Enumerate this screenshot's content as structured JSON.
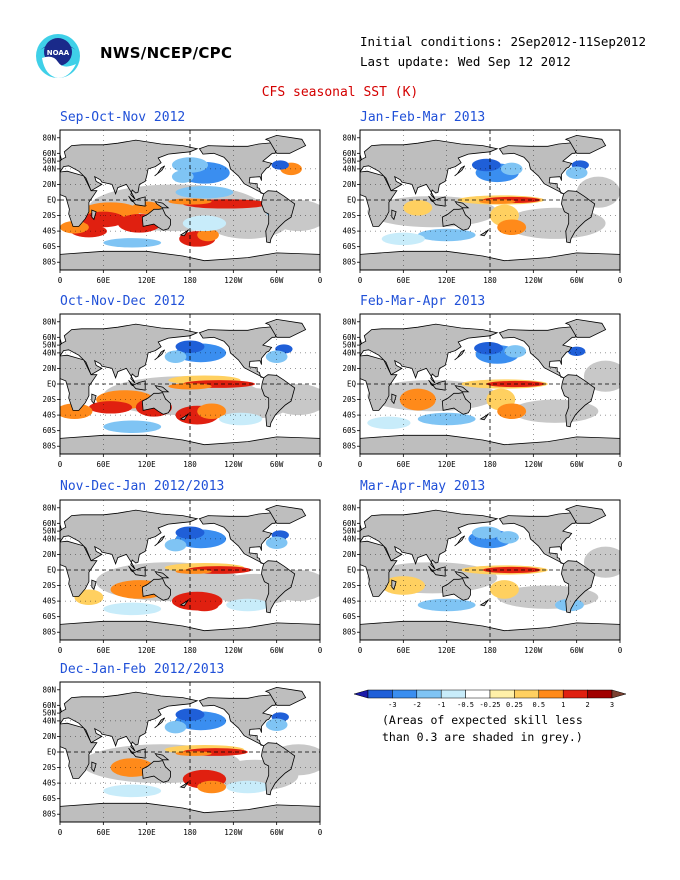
{
  "header": {
    "agency": "NWS/NCEP/CPC",
    "initial_conditions": "Initial conditions: 2Sep2012-11Sep2012",
    "last_update": "Last update: Wed Sep 12 2012",
    "title": "CFS seasonal SST (K)",
    "logo_text": "NOAA"
  },
  "panels": [
    {
      "title": "Sep-Oct-Nov 2012"
    },
    {
      "title": "Jan-Feb-Mar 2013"
    },
    {
      "title": "Oct-Nov-Dec 2012"
    },
    {
      "title": "Feb-Mar-Apr 2013"
    },
    {
      "title": "Nov-Dec-Jan 2012/2013"
    },
    {
      "title": "Mar-Apr-May 2013"
    },
    {
      "title": "Dec-Jan-Feb 2012/2013"
    }
  ],
  "axes": {
    "lat_labels": [
      "80N",
      "60N",
      "50N",
      "40N",
      "20N",
      "EQ",
      "20S",
      "40S",
      "60S",
      "80S"
    ],
    "lon_labels": [
      "0",
      "60E",
      "120E",
      "180",
      "120W",
      "60W",
      "0"
    ]
  },
  "legend": {
    "labels": [
      "-3",
      "-2",
      "-1",
      "-0.5",
      "-0.25",
      "0.25",
      "0.5",
      "1",
      "2",
      "3"
    ],
    "colors": [
      "#1a1aa8",
      "#1f5fd8",
      "#3a8ef0",
      "#7fc4f4",
      "#c8ecfa",
      "#ffffff",
      "#fff0a8",
      "#ffd060",
      "#ff8a1a",
      "#e02010",
      "#a00000",
      "#7a4030"
    ],
    "caption_line1": "(Areas of expected skill less",
    "caption_line2": "than 0.3 are shaded in grey.)"
  },
  "colors": {
    "title_red": "#d40000",
    "panel_title_blue": "#2050d8",
    "land_grey": "#bebebe",
    "low_skill_grey": "#c4c4c4"
  }
}
